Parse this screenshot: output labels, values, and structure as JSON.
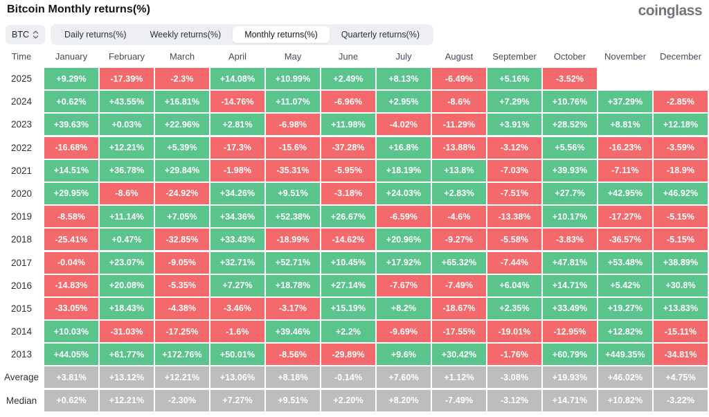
{
  "page": {
    "title": "Bitcoin Monthly returns(%)",
    "logo": "coinglass"
  },
  "controls": {
    "symbol_select": {
      "value": "BTC"
    },
    "tabs": [
      {
        "label": "Daily returns(%)",
        "active": false
      },
      {
        "label": "Weekly returns(%)",
        "active": false
      },
      {
        "label": "Monthly returns(%)",
        "active": true
      },
      {
        "label": "Quarterly returns(%)",
        "active": false
      }
    ]
  },
  "chart_data": {
    "type": "heatmap",
    "title": "Bitcoin Monthly returns(%)",
    "legend_note": "green = positive month, red = negative month, gray = summary rows",
    "colors": {
      "positive": "#5bc48c",
      "negative": "#f4696c",
      "summary": "#bdbdbd"
    },
    "columns": [
      "Time",
      "January",
      "February",
      "March",
      "April",
      "May",
      "June",
      "July",
      "August",
      "September",
      "October",
      "November",
      "December"
    ],
    "rows": [
      {
        "label": "2025",
        "type": "year",
        "values": [
          "+9.29%",
          "-17.39%",
          "-2.3%",
          "+14.08%",
          "+10.99%",
          "+2.49%",
          "+8.13%",
          "-6.49%",
          "+5.16%",
          "-3.52%",
          null,
          null
        ]
      },
      {
        "label": "2024",
        "type": "year",
        "values": [
          "+0.62%",
          "+43.55%",
          "+16.81%",
          "-14.76%",
          "+11.07%",
          "-6.96%",
          "+2.95%",
          "-8.6%",
          "+7.29%",
          "+10.76%",
          "+37.29%",
          "-2.85%"
        ]
      },
      {
        "label": "2023",
        "type": "year",
        "values": [
          "+39.63%",
          "+0.03%",
          "+22.96%",
          "+2.81%",
          "-6.98%",
          "+11.98%",
          "-4.02%",
          "-11.29%",
          "+3.91%",
          "+28.52%",
          "+8.81%",
          "+12.18%"
        ]
      },
      {
        "label": "2022",
        "type": "year",
        "values": [
          "-16.68%",
          "+12.21%",
          "+5.39%",
          "-17.3%",
          "-15.6%",
          "-37.28%",
          "+16.8%",
          "-13.88%",
          "-3.12%",
          "+5.56%",
          "-16.23%",
          "-3.59%"
        ]
      },
      {
        "label": "2021",
        "type": "year",
        "values": [
          "+14.51%",
          "+36.78%",
          "+29.84%",
          "-1.98%",
          "-35.31%",
          "-5.95%",
          "+18.19%",
          "+13.8%",
          "-7.03%",
          "+39.93%",
          "-7.11%",
          "-18.9%"
        ]
      },
      {
        "label": "2020",
        "type": "year",
        "values": [
          "+29.95%",
          "-8.6%",
          "-24.92%",
          "+34.26%",
          "+9.51%",
          "-3.18%",
          "+24.03%",
          "+2.83%",
          "-7.51%",
          "+27.7%",
          "+42.95%",
          "+46.92%"
        ]
      },
      {
        "label": "2019",
        "type": "year",
        "values": [
          "-8.58%",
          "+11.14%",
          "+7.05%",
          "+34.36%",
          "+52.38%",
          "+26.67%",
          "-6.59%",
          "-4.6%",
          "-13.38%",
          "+10.17%",
          "-17.27%",
          "-5.15%"
        ]
      },
      {
        "label": "2018",
        "type": "year",
        "values": [
          "-25.41%",
          "+0.47%",
          "-32.85%",
          "+33.43%",
          "-18.99%",
          "-14.62%",
          "+20.96%",
          "-9.27%",
          "-5.58%",
          "-3.83%",
          "-36.57%",
          "-5.15%"
        ]
      },
      {
        "label": "2017",
        "type": "year",
        "values": [
          "-0.04%",
          "+23.07%",
          "-9.05%",
          "+32.71%",
          "+52.71%",
          "+10.45%",
          "+17.92%",
          "+65.32%",
          "-7.44%",
          "+47.81%",
          "+53.48%",
          "+38.89%"
        ]
      },
      {
        "label": "2016",
        "type": "year",
        "values": [
          "-14.83%",
          "+20.08%",
          "-5.35%",
          "+7.27%",
          "+18.78%",
          "+27.14%",
          "-7.67%",
          "-7.49%",
          "+6.04%",
          "+14.71%",
          "+5.42%",
          "+30.8%"
        ]
      },
      {
        "label": "2015",
        "type": "year",
        "values": [
          "-33.05%",
          "+18.43%",
          "-4.38%",
          "-3.46%",
          "-3.17%",
          "+15.19%",
          "+8.2%",
          "-18.67%",
          "+2.35%",
          "+33.49%",
          "+19.27%",
          "+13.83%"
        ]
      },
      {
        "label": "2014",
        "type": "year",
        "values": [
          "+10.03%",
          "-31.03%",
          "-17.25%",
          "-1.6%",
          "+39.46%",
          "+2.2%",
          "-9.69%",
          "-17.55%",
          "-19.01%",
          "-12.95%",
          "+12.82%",
          "-15.11%"
        ]
      },
      {
        "label": "2013",
        "type": "year",
        "values": [
          "+44.05%",
          "+61.77%",
          "+172.76%",
          "+50.01%",
          "-8.56%",
          "-29.89%",
          "+9.6%",
          "+30.42%",
          "-1.76%",
          "+60.79%",
          "+449.35%",
          "-34.81%"
        ]
      },
      {
        "label": "Average",
        "type": "summary",
        "values": [
          "+3.81%",
          "+13.12%",
          "+12.21%",
          "+13.06%",
          "+8.18%",
          "-0.14%",
          "+7.60%",
          "+1.12%",
          "-3.08%",
          "+19.93%",
          "+46.02%",
          "+4.75%"
        ]
      },
      {
        "label": "Median",
        "type": "summary",
        "values": [
          "+0.62%",
          "+12.21%",
          "-2.30%",
          "+7.27%",
          "+9.51%",
          "+2.20%",
          "+8.20%",
          "-7.49%",
          "-3.12%",
          "+14.71%",
          "+10.82%",
          "-3.22%"
        ]
      }
    ]
  }
}
